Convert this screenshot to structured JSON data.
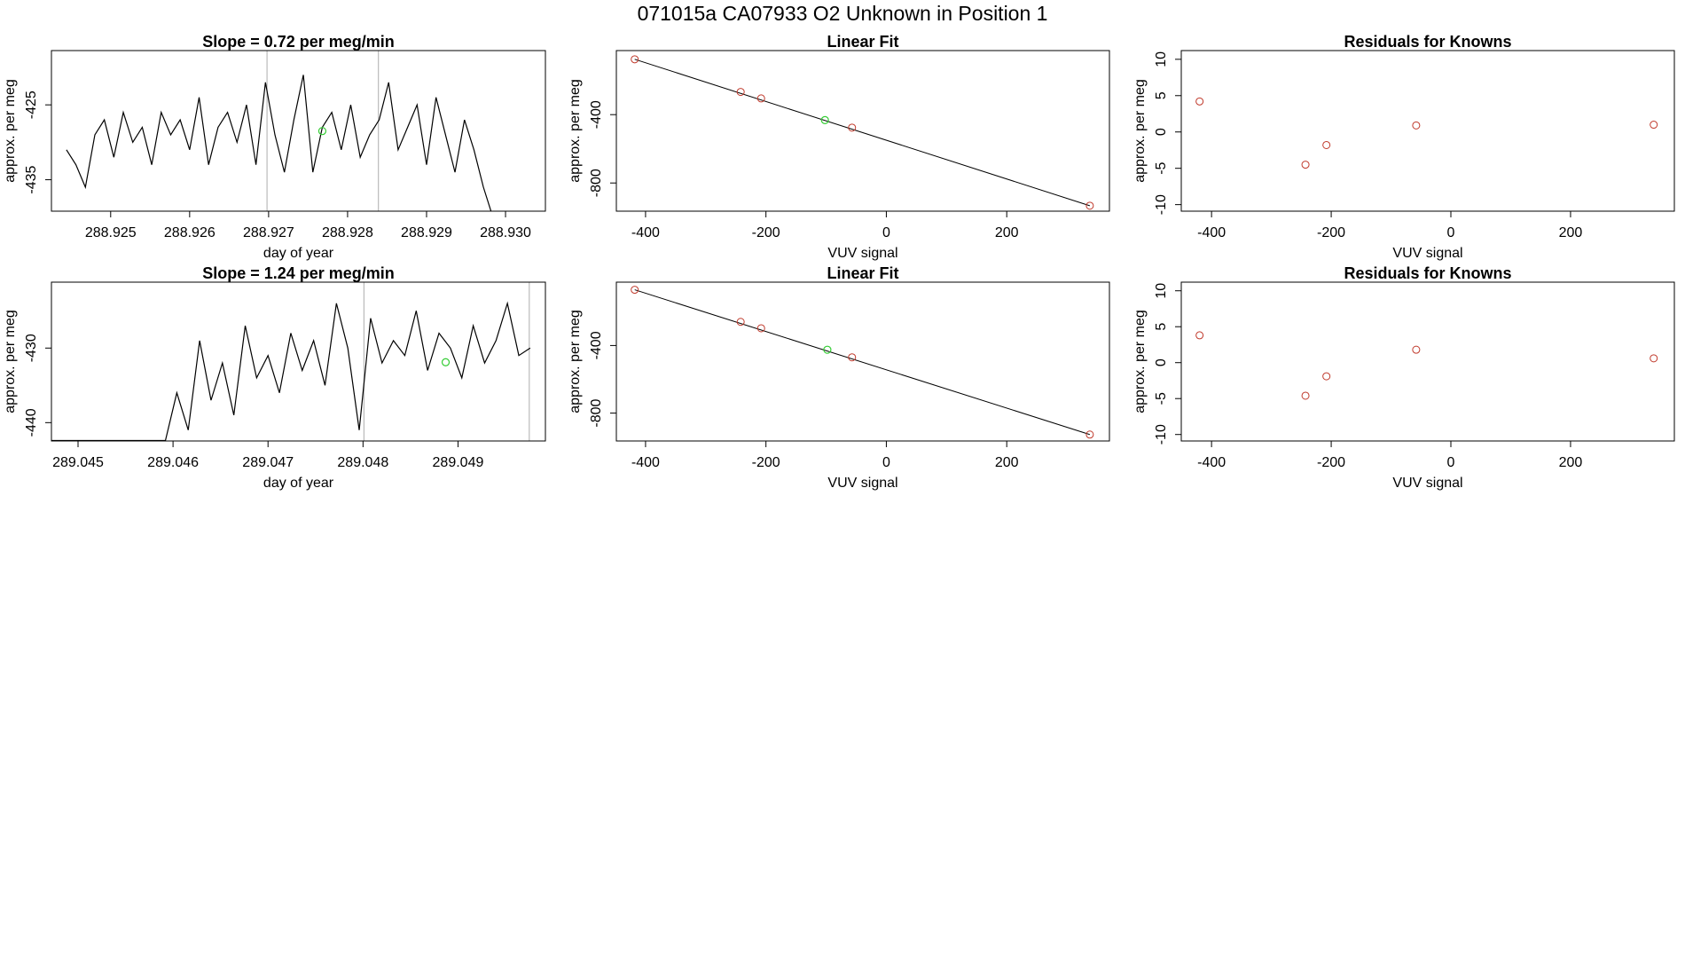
{
  "title": "071015a      CA07933   O2 Unknown in Position  1",
  "chart_data": [
    {
      "type": "line",
      "title": "Slope =  0.72  per meg/min",
      "xlabel": "day of year",
      "ylabel": "approx. per meg",
      "color": "#000000",
      "x": [
        288.92444,
        288.92456,
        288.92468,
        288.9248,
        288.92492,
        288.92504,
        288.92516,
        288.92528,
        288.9254,
        288.92552,
        288.92564,
        288.92576,
        288.92588,
        288.926,
        288.92612,
        288.92624,
        288.92636,
        288.92648,
        288.9266,
        288.92672,
        288.92684,
        288.92696,
        288.92708,
        288.9272,
        288.92732,
        288.92744,
        288.92756,
        288.92768,
        288.9278,
        288.92792,
        288.92804,
        288.92816,
        288.92828,
        288.9284,
        288.92852,
        288.92864,
        288.92876,
        288.92888,
        288.929,
        288.92912,
        288.92924,
        288.92936,
        288.92948,
        288.9296,
        288.92972,
        288.92984
      ],
      "values": [
        -431,
        -433,
        -436,
        -429,
        -427,
        -432,
        -426,
        -430,
        -428,
        -433,
        -426,
        -429,
        -427,
        -431,
        -424,
        -433,
        -428,
        -426,
        -430,
        -425,
        -433,
        -422,
        -429,
        -434,
        -427,
        -421,
        -434,
        -428,
        -426,
        -431,
        -425,
        -432,
        -429,
        -427,
        -422,
        -431,
        -428,
        -425,
        -433,
        -424,
        -429,
        -434,
        -427,
        -431,
        -436,
        -440
      ],
      "xlim": [
        288.92425,
        288.930505
      ],
      "ylim": [
        -439.2,
        -417.75
      ],
      "xticks": [
        288.925,
        288.926,
        288.927,
        288.928,
        288.929,
        {
          "value": 288.93,
          "label": "288.930"
        }
      ],
      "yticks": [
        -425,
        -435
      ],
      "vlines": [
        288.92698,
        288.92839
      ],
      "vline_color": "#bbbbbb",
      "highlight": {
        "x": 288.92768,
        "y": -428.5,
        "color": "#33cc33"
      }
    },
    {
      "type": "scatter",
      "title": "Linear Fit",
      "xlabel": "VUV signal",
      "ylabel": "approx. per meg",
      "color": "#c0392b",
      "x": [
        -418,
        -242,
        -208,
        -57,
        338
      ],
      "values": [
        -76,
        -267,
        -305,
        -476,
        -933
      ],
      "xlim": [
        -448.5,
        370.6
      ],
      "ylim": [
        -965,
        -25
      ],
      "xticks": [
        -400,
        -200,
        0,
        200
      ],
      "yticks": [
        -400,
        -800
      ],
      "highlight": {
        "x": -102,
        "y": -432,
        "color": "#33cc33"
      },
      "fit": {
        "x": [
          -418,
          338
        ],
        "y": [
          -76,
          -933
        ]
      }
    },
    {
      "type": "scatter",
      "title": "Residuals for Knowns",
      "xlabel": "VUV signal",
      "ylabel": "approx. per meg",
      "color": "#c0392b",
      "x": [
        -420,
        -243,
        -208,
        -58,
        339
      ],
      "values": [
        4.2,
        -4.5,
        -1.8,
        0.9,
        1.0
      ],
      "xlim": [
        -450.6,
        373.5
      ],
      "ylim": [
        -10.9,
        11.2
      ],
      "xticks": [
        -400,
        -200,
        0,
        200
      ],
      "yticks": [
        -10,
        -5,
        0,
        5,
        10
      ]
    },
    {
      "type": "line",
      "title": "Slope =  1.24  per meg/min",
      "xlabel": "day of year",
      "ylabel": "approx. per meg",
      "color": "#000000",
      "x": [
        289.04472,
        289.04484,
        289.04496,
        289.04508,
        289.0452,
        289.04532,
        289.04544,
        289.04556,
        289.04568,
        289.0458,
        289.04592,
        289.04604,
        289.04616,
        289.04628,
        289.0464,
        289.04652,
        289.04664,
        289.04676,
        289.04688,
        289.047,
        289.04712,
        289.04724,
        289.04736,
        289.04748,
        289.0476,
        289.04772,
        289.04784,
        289.04796,
        289.04808,
        289.0482,
        289.04832,
        289.04844,
        289.04856,
        289.04868,
        289.0488,
        289.04892,
        289.04904,
        289.04916,
        289.04928,
        289.0494,
        289.04952,
        289.04964,
        289.04976
      ],
      "values": [
        -442.4,
        -442.4,
        -442.4,
        -442.4,
        -442.4,
        -442.4,
        -442.4,
        -442.4,
        -442.4,
        -442.4,
        -442.4,
        -436,
        -441,
        -429,
        -437,
        -432,
        -439,
        -427,
        -434,
        -431,
        -436,
        -428,
        -433,
        -429,
        -435,
        -424,
        -430,
        -441,
        -426,
        -432,
        -429,
        -431,
        -425,
        -433,
        -428,
        -430,
        -434,
        -427,
        -432,
        -429,
        -424,
        -431,
        -430
      ],
      "xlim": [
        289.04472,
        289.04992
      ],
      "ylim": [
        -442.46,
        -421.16
      ],
      "xticks": [
        289.045,
        289.046,
        289.047,
        289.048,
        289.049
      ],
      "yticks": [
        -430,
        -440
      ],
      "vlines": [
        289.04801,
        289.04975
      ],
      "vline_color": "#bbbbbb",
      "highlight": {
        "x": 289.04887,
        "y": -431.9,
        "color": "#33cc33"
      }
    },
    {
      "type": "scatter",
      "title": "Linear Fit",
      "xlabel": "VUV signal",
      "ylabel": "approx. per meg",
      "color": "#c0392b",
      "x": [
        -418,
        -242,
        -208,
        -57,
        338
      ],
      "values": [
        -70,
        -260,
        -298,
        -470,
        -927
      ],
      "xlim": [
        -448.5,
        370.6
      ],
      "ylim": [
        -965,
        -25
      ],
      "xticks": [
        -400,
        -200,
        0,
        200
      ],
      "yticks": [
        -400,
        -800
      ],
      "highlight": {
        "x": -98,
        "y": -425,
        "color": "#33cc33"
      },
      "fit": {
        "x": [
          -418,
          338
        ],
        "y": [
          -70,
          -927
        ]
      }
    },
    {
      "type": "scatter",
      "title": "Residuals for Knowns",
      "xlabel": "VUV signal",
      "ylabel": "approx. per meg",
      "color": "#c0392b",
      "x": [
        -420,
        -243,
        -208,
        -58,
        339
      ],
      "values": [
        3.8,
        -4.6,
        -1.9,
        1.8,
        0.6
      ],
      "xlim": [
        -450.6,
        373.5
      ],
      "ylim": [
        -10.9,
        11.2
      ],
      "xticks": [
        -400,
        -200,
        0,
        200
      ],
      "yticks": [
        -10,
        -5,
        0,
        5,
        10
      ]
    }
  ]
}
